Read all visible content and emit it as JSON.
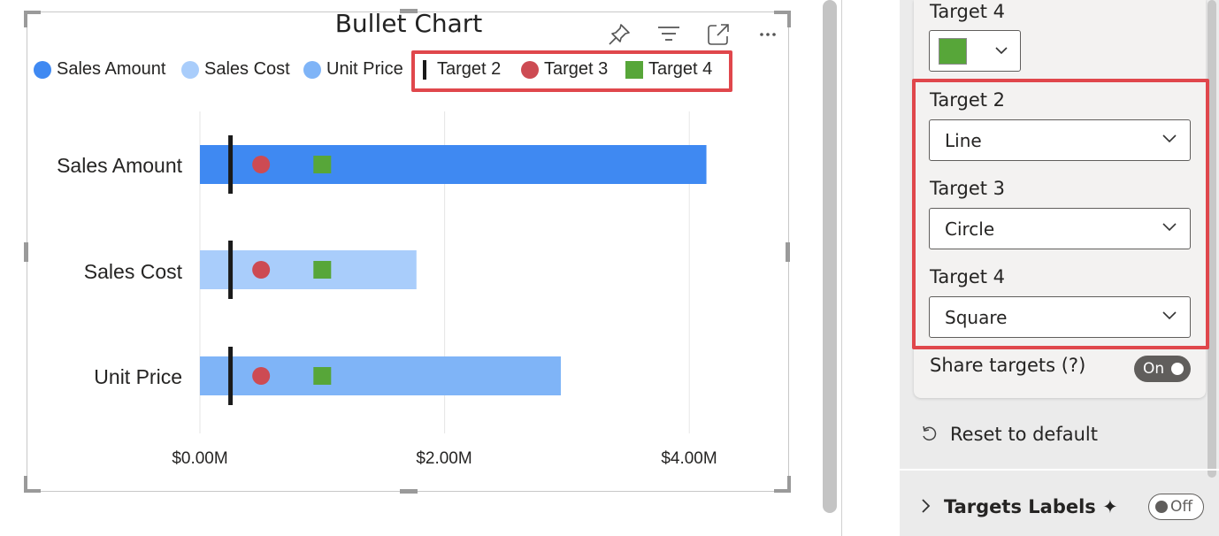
{
  "chart": {
    "title": "Bullet Chart",
    "legend": [
      {
        "label": "Sales Amount",
        "shape": "circle",
        "color": "#3f89f2"
      },
      {
        "label": "Sales Cost",
        "shape": "circle",
        "color": "#a9cdfb"
      },
      {
        "label": "Unit Price",
        "shape": "circle",
        "color": "#7fb4f7"
      },
      {
        "label": "Target 2",
        "shape": "line",
        "color": "#1a1a1a"
      },
      {
        "label": "Target 3",
        "shape": "circle",
        "color": "#cd4b53"
      },
      {
        "label": "Target 4",
        "shape": "square",
        "color": "#57a639"
      }
    ],
    "header_icons": [
      "pin-icon",
      "filter-icon",
      "focus-mode-icon",
      "more-options-icon"
    ]
  },
  "chart_data": {
    "type": "bar",
    "orientation": "horizontal",
    "title": "Bullet Chart",
    "categories": [
      "Sales Amount",
      "Sales Cost",
      "Unit Price"
    ],
    "values": [
      4.14,
      1.77,
      2.95
    ],
    "value_unit": "$M",
    "bar_colors": [
      "#3f89f2",
      "#a9cdfb",
      "#7fb4f7"
    ],
    "targets": [
      {
        "name": "Target 2",
        "shape": "line",
        "color": "#1a1a1a",
        "values": [
          0.25,
          0.25,
          0.25
        ]
      },
      {
        "name": "Target 3",
        "shape": "circle",
        "color": "#cd4b53",
        "values": [
          0.5,
          0.5,
          0.5
        ]
      },
      {
        "name": "Target 4",
        "shape": "square",
        "color": "#57a639",
        "values": [
          1.0,
          1.0,
          1.0
        ]
      }
    ],
    "xticks": [
      0,
      2,
      4
    ],
    "xtick_labels": [
      "$0.00M",
      "$2.00M",
      "$4.00M"
    ],
    "xlim": [
      0,
      4.6
    ],
    "grid": true,
    "legend_position": "top-left"
  },
  "format_pane": {
    "top_label": "Target 4",
    "top_color": "#57a639",
    "target2_label": "Target 2",
    "target2_value": "Line",
    "target3_label": "Target 3",
    "target3_value": "Circle",
    "target4_label": "Target 4",
    "target4_value": "Square",
    "share_targets_label": "Share targets (?)",
    "share_targets_state": "On",
    "reset_label": "Reset to default",
    "targets_labels_section": "Targets Labels ✦",
    "targets_labels_state": "Off"
  }
}
